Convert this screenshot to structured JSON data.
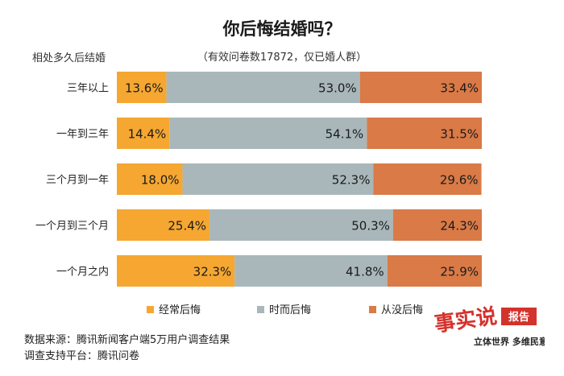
{
  "header": {
    "title": "你后悔结婚吗？",
    "subtitle": "（有效问卷数17872，仅已婚人群）",
    "group_label": "相处多久后结婚"
  },
  "chart_data": {
    "type": "bar",
    "orientation": "horizontal",
    "stacked": true,
    "percent_stacked": true,
    "title": "你后悔结婚吗？",
    "subtitle": "（有效问卷数17872，仅已婚人群）",
    "ylabel": "相处多久后结婚",
    "xlim": [
      0,
      100
    ],
    "grid": false,
    "legend_position": "bottom",
    "categories": [
      "三年以上",
      "一年到三年",
      "三个月到一年",
      "一个月到三个月",
      "一个月之内"
    ],
    "series": [
      {
        "name": "经常后悔",
        "color": "#f5a732",
        "values": [
          13.6,
          14.4,
          18.0,
          25.4,
          32.3
        ],
        "labels": [
          "13.6%",
          "14.4%",
          "18.0%",
          "25.4%",
          "32.3%"
        ]
      },
      {
        "name": "时而后悔",
        "color": "#a9b7ba",
        "values": [
          53.0,
          54.1,
          52.3,
          50.3,
          41.8
        ],
        "labels": [
          "53.0%",
          "54.1%",
          "52.3%",
          "50.3%",
          "41.8%"
        ]
      },
      {
        "name": "从没后悔",
        "color": "#d97a47",
        "values": [
          33.4,
          31.5,
          29.6,
          24.3,
          25.9
        ],
        "labels": [
          "33.4%",
          "31.5%",
          "29.6%",
          "24.3%",
          "25.9%"
        ]
      }
    ]
  },
  "footer": {
    "source": "数据来源：腾讯新闻客户端5万用户调查结果",
    "support": "调查支持平台：腾讯问卷"
  },
  "logo": {
    "big_text": "事实说",
    "badge": "报告",
    "slogan": "立体世界 多维民意",
    "color": "#d4322c"
  }
}
